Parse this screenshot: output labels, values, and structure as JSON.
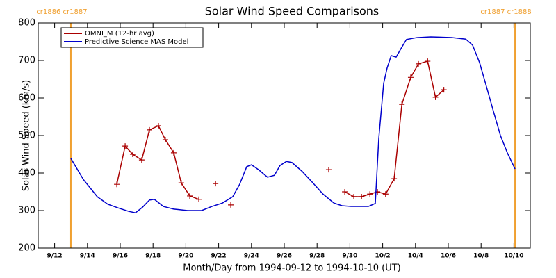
{
  "chart_data": {
    "type": "line",
    "title": "Solar Wind Speed Comparisons",
    "xlabel": "Month/Day from 1994-09-12 to 1994-10-10 (UT)",
    "ylabel": "Solar Wind Speed (km/s)",
    "xlim": [
      -1,
      29
    ],
    "ylim": [
      200,
      800
    ],
    "xticks": [
      {
        "value": 0,
        "label": "9/12"
      },
      {
        "value": 2,
        "label": "9/14"
      },
      {
        "value": 4,
        "label": "9/16"
      },
      {
        "value": 6,
        "label": "9/18"
      },
      {
        "value": 8,
        "label": "9/20"
      },
      {
        "value": 10,
        "label": "9/22"
      },
      {
        "value": 12,
        "label": "9/24"
      },
      {
        "value": 14,
        "label": "9/26"
      },
      {
        "value": 16,
        "label": "9/28"
      },
      {
        "value": 18,
        "label": "9/30"
      },
      {
        "value": 20,
        "label": "10/2"
      },
      {
        "value": 22,
        "label": "10/4"
      },
      {
        "value": 24,
        "label": "10/6"
      },
      {
        "value": 26,
        "label": "10/8"
      },
      {
        "value": 28,
        "label": "10/10"
      }
    ],
    "yticks": [
      200,
      300,
      400,
      500,
      600,
      700,
      800
    ],
    "legend": "upper-left",
    "vlines": [
      {
        "x": 0.99,
        "label": "cr1886 cr1887",
        "color": "#f0a030"
      },
      {
        "x": 28.07,
        "label": "cr1887 cr1888",
        "color": "#f0a030"
      }
    ],
    "series": [
      {
        "name": "OMNI_M (12-hr avg)",
        "color": "#aa0000",
        "marker": "+",
        "x": [
          3.79,
          4.3,
          4.76,
          5.31,
          5.78,
          6.33,
          6.75,
          7.26,
          7.72,
          8.24,
          8.79,
          9.3,
          9.81,
          10.27,
          10.74,
          11.2,
          16.71,
          17.2,
          17.69,
          18.24,
          18.71,
          19.22,
          19.68,
          20.18,
          20.7,
          21.17,
          21.71,
          22.18,
          22.74,
          23.22,
          23.73
        ],
        "values": [
          370,
          472,
          450,
          435,
          515,
          526,
          489,
          454,
          374,
          339,
          330,
          null,
          372,
          null,
          315,
          null,
          409,
          null,
          350,
          337,
          337,
          344,
          350,
          344,
          385,
          583,
          655,
          691,
          698,
          602,
          622
        ]
      },
      {
        "name": "Predictive Science MAS Model",
        "color": "#0000cc",
        "x": [
          0.99,
          1.75,
          2.6,
          3.24,
          3.87,
          4.51,
          4.93,
          5.36,
          5.78,
          6.08,
          6.63,
          7.26,
          8.11,
          8.96,
          9.59,
          10.23,
          10.86,
          11.28,
          11.71,
          12.0,
          12.43,
          12.98,
          13.4,
          13.74,
          14.13,
          14.47,
          15.1,
          15.74,
          16.36,
          17.03,
          17.52,
          18.07,
          19.13,
          19.55,
          19.76,
          20.06,
          20.27,
          20.52,
          20.82,
          21.16,
          21.45,
          22.08,
          22.93,
          24.21,
          25.06,
          25.48,
          25.91,
          26.33,
          26.75,
          27.18,
          27.6,
          28.07
        ],
        "values": [
          439,
          383,
          337,
          317,
          307,
          298,
          294,
          309,
          328,
          330,
          311,
          304,
          300,
          300,
          311,
          320,
          337,
          370,
          417,
          422,
          409,
          389,
          394,
          420,
          431,
          428,
          404,
          374,
          344,
          320,
          313,
          311,
          311,
          319,
          491,
          639,
          680,
          713,
          709,
          735,
          756,
          761,
          763,
          761,
          757,
          741,
          694,
          630,
          565,
          500,
          454,
          411
        ]
      }
    ]
  }
}
